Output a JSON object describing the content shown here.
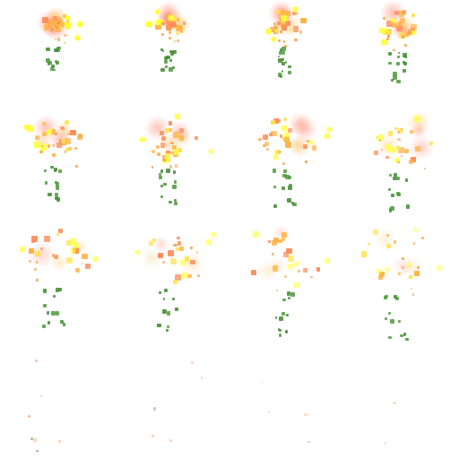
{
  "sprite_sheet": {
    "columns": 4,
    "rows": 4,
    "frame_count": 16,
    "colors": {
      "background": "#ffffff",
      "core": "#ffe34d",
      "core_bright": "#ffff33",
      "flame": "#ffb347",
      "ember": "#ff8c5a",
      "hot_glow": "#ff6a4d",
      "spark_orange": "#f2a040",
      "leaf": "#4d9a3c",
      "leaf_dark": "#3f8a30"
    }
  }
}
